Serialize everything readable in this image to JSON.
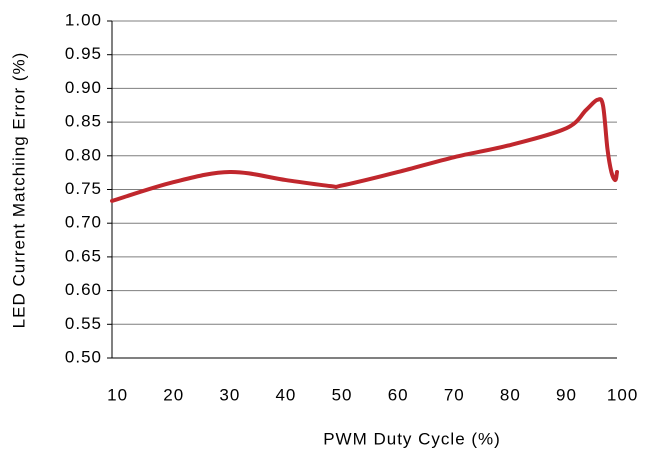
{
  "chart_data": {
    "type": "line",
    "x_label": "PWM Duty Cycle (%)",
    "y_label": "LED Current Matchiing Error (%)",
    "x": [
      9,
      20,
      30,
      40,
      48,
      50,
      60,
      70,
      80,
      90,
      93.5,
      95.5,
      96.5,
      97.3,
      98,
      98.7,
      99
    ],
    "series": [
      {
        "name": "LED Current Matching Error",
        "color": "#c0272d",
        "values": [
          0.733,
          0.761,
          0.776,
          0.764,
          0.755,
          0.756,
          0.776,
          0.798,
          0.816,
          0.841,
          0.868,
          0.883,
          0.875,
          0.81,
          0.776,
          0.764,
          0.776
        ]
      }
    ],
    "xlim": [
      9,
      99
    ],
    "xticks": [
      10,
      20,
      30,
      40,
      50,
      60,
      70,
      80,
      90,
      100
    ],
    "ylim": [
      0.5,
      1.0
    ],
    "yticks": [
      {
        "value": 0.5,
        "label": "0.50"
      },
      {
        "value": 0.55,
        "label": "0.55"
      },
      {
        "value": 0.6,
        "label": "0.60"
      },
      {
        "value": 0.65,
        "label": "0.65"
      },
      {
        "value": 0.7,
        "label": "0.70"
      },
      {
        "value": 0.75,
        "label": "0.75"
      },
      {
        "value": 0.8,
        "label": "0.80"
      },
      {
        "value": 0.85,
        "label": "0.85"
      },
      {
        "value": 0.9,
        "label": "0.90"
      },
      {
        "value": 0.95,
        "label": "0.95"
      },
      {
        "value": 1.0,
        "label": "1.00"
      }
    ],
    "grid": true
  }
}
